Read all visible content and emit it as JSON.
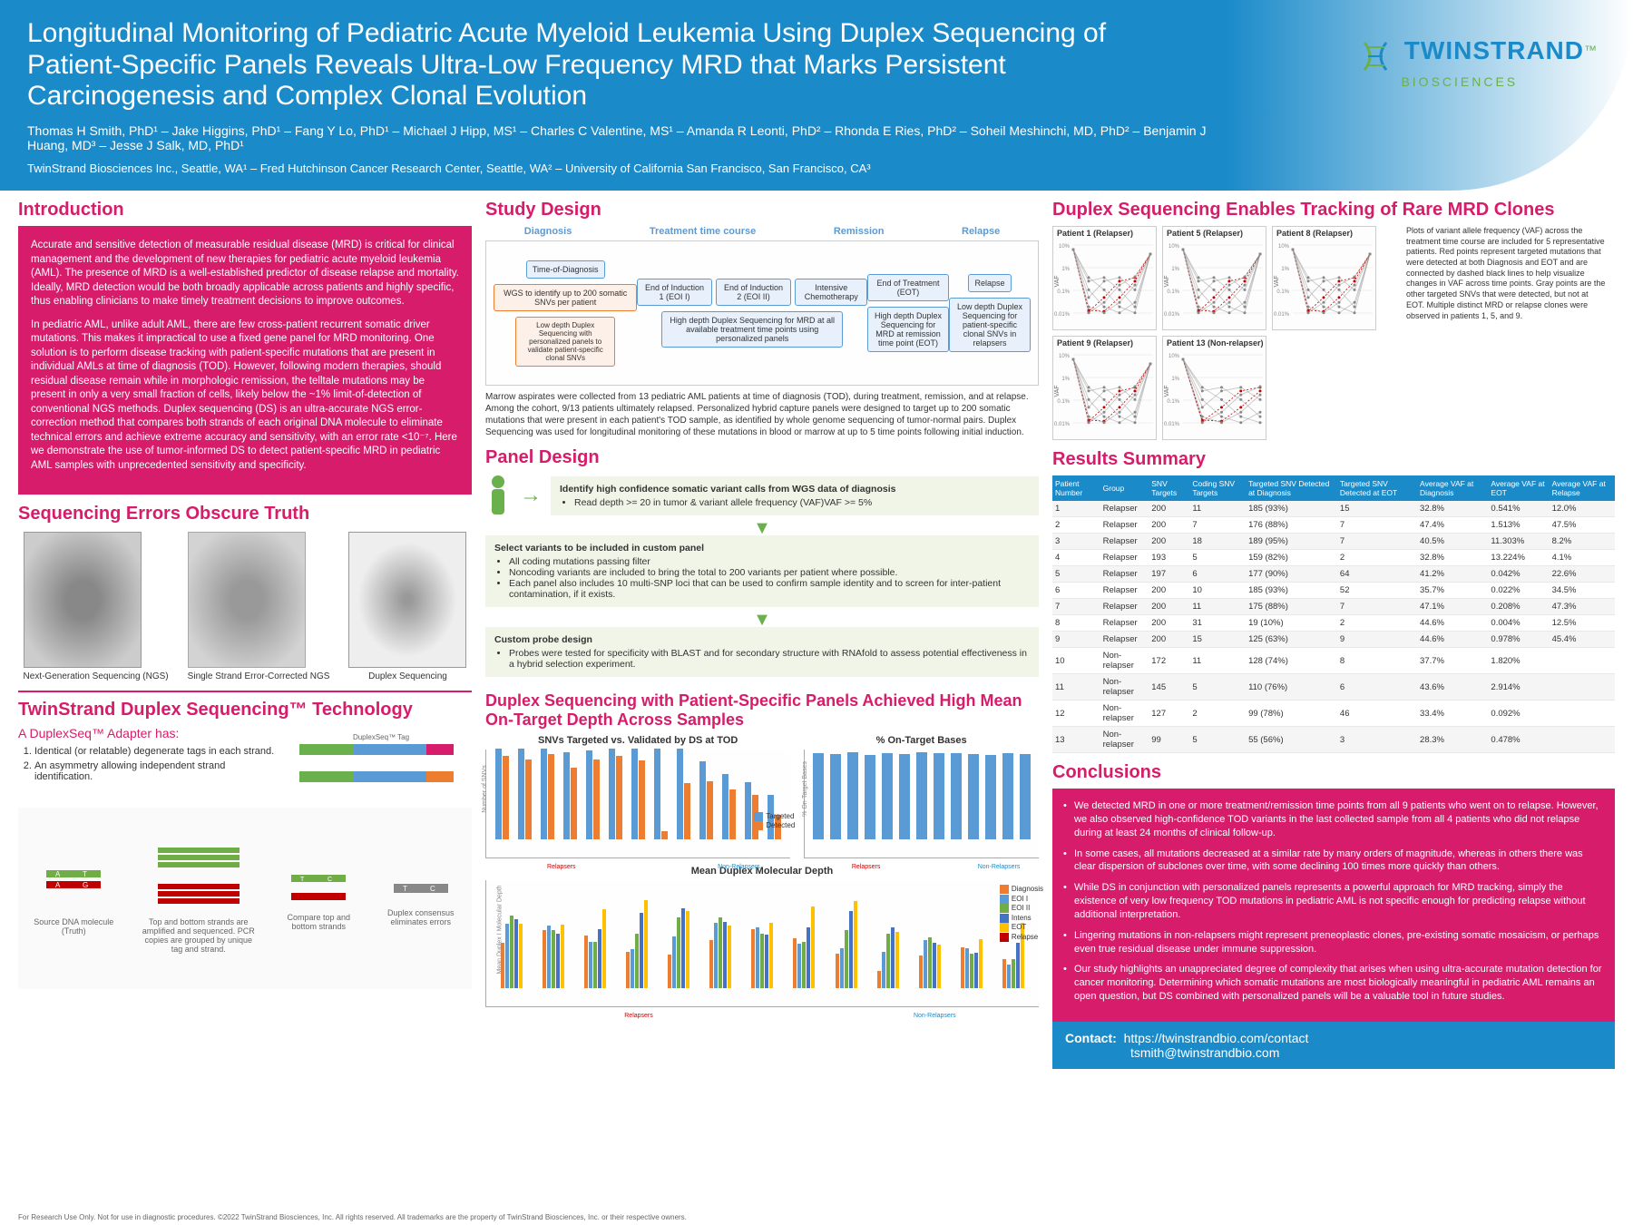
{
  "header": {
    "title": "Longitudinal Monitoring of Pediatric Acute Myeloid Leukemia Using Duplex Sequencing of Patient-Specific Panels Reveals Ultra-Low Frequency MRD that Marks Persistent Carcinogenesis and Complex Clonal Evolution",
    "authors": "Thomas H Smith, PhD¹ – Jake Higgins, PhD¹ – Fang Y Lo, PhD¹ – Michael J Hipp, MS¹ – Charles C Valentine, MS¹ – Amanda R Leonti, PhD² – Rhonda E Ries, PhD² – Soheil Meshinchi, MD, PhD² – Benjamin J Huang, MD³ – Jesse J Salk, MD, PhD¹",
    "affiliations": "TwinStrand Biosciences Inc., Seattle, WA¹ – Fred Hutchinson Cancer Research Center, Seattle, WA² – University of California San Francisco, San Francisco, CA³",
    "logo_main": "TWINSTRAND",
    "logo_sub": "BIOSCIENCES"
  },
  "intro": {
    "title": "Introduction",
    "p1": "Accurate and sensitive detection of measurable residual disease (MRD) is critical for clinical management and the development of new therapies for pediatric acute myeloid leukemia (AML). The presence of MRD is a well-established predictor of disease relapse and mortality. Ideally, MRD detection would be both broadly applicable across patients and highly specific, thus enabling clinicians to make timely treatment decisions to improve outcomes.",
    "p2": "In pediatric AML, unlike adult AML, there are few cross-patient recurrent somatic driver mutations. This makes it impractical to use a fixed gene panel for MRD monitoring. One solution is to perform disease tracking with patient-specific mutations that are present in individual AMLs at time of diagnosis (TOD). However, following modern therapies, should residual disease remain while in morphologic remission, the telltale mutations may be present in only a very small fraction of cells, likely below the ~1% limit-of-detection of conventional NGS methods. Duplex sequencing (DS) is an ultra-accurate NGS error-correction method that compares both strands of each original DNA molecule to eliminate technical errors and achieve extreme accuracy and sensitivity, with an error rate <10⁻⁷. Here we demonstrate the use of tumor-informed DS to detect patient-specific MRD in pediatric AML samples with unprecedented sensitivity and specificity."
  },
  "seq_err": {
    "title": "Sequencing Errors Obscure Truth",
    "labels": [
      "Next-Generation Sequencing (NGS)",
      "Single Strand Error-Corrected NGS",
      "Duplex Sequencing"
    ]
  },
  "tech": {
    "title": "TwinStrand Duplex Sequencing™ Technology",
    "adapter_heading": "A DuplexSeq™ Adapter has:",
    "adapter_items": [
      "Identical (or relatable) degenerate tags in each strand.",
      "An asymmetry allowing independent strand identification."
    ],
    "diagram_labels": [
      "Source DNA molecule (Truth)",
      "Top and bottom strands are amplified and sequenced. PCR copies are grouped by unique tag and strand.",
      "Compare top and bottom strands",
      "Duplex consensus eliminates errors"
    ]
  },
  "study": {
    "title": "Study Design",
    "phases": [
      "Diagnosis",
      "Treatment time course",
      "Remission",
      "Relapse"
    ],
    "boxes": [
      "Time-of-Diagnosis",
      "End of Induction 1 (EOI I)",
      "End of Induction 2 (EOI II)",
      "Intensive Chemotherapy",
      "End of Treatment (EOT)",
      "Relapse"
    ],
    "sub_boxes": [
      "WGS to identify up to 200 somatic SNVs per patient",
      "High depth Duplex Sequencing for MRD at all available treatment time points using personalized panels",
      "High depth Duplex Sequencing for MRD at remission time point (EOT)",
      "Low depth Duplex Sequencing for patient-specific clonal SNVs in relapsers"
    ],
    "validation_box": "Low depth Duplex Sequencing with personalized panels to validate patient-specific clonal SNVs",
    "caption": "Marrow aspirates were collected from 13 pediatric AML patients at time of diagnosis (TOD), during treatment, remission, and at relapse. Among the cohort, 9/13 patients ultimately relapsed. Personalized hybrid capture panels were designed to target up to 200 somatic mutations that were present in each patient's TOD sample, as identified by whole genome sequencing of tumor-normal pairs. Duplex Sequencing was used for longitudinal monitoring of these mutations in blood or marrow at up to 5 time points following initial induction."
  },
  "panel": {
    "title": "Panel Design",
    "step1": "Identify high confidence somatic variant calls from WGS data of diagnosis",
    "step1_sub": "Read depth >= 20 in tumor & variant allele frequency (VAF)VAF >= 5%",
    "step2": "Select variants to be included in custom panel",
    "step2_items": [
      "All coding mutations passing filter",
      "Noncoding variants are included to bring the total to 200 variants per patient where possible.",
      "Each panel also includes 10 multi-SNP loci that can be used to confirm sample identity and to screen for inter-patient contamination, if it exists."
    ],
    "step3": "Custom probe design",
    "step3_items": [
      "Probes were tested for specificity with BLAST and for secondary structure with RNAfold to assess potential effectiveness in a hybrid selection experiment."
    ]
  },
  "depth_section": {
    "title": "Duplex Sequencing with Patient-Specific Panels Achieved High Mean On-Target Depth Across Samples",
    "chart1_title": "SNVs Targeted vs. Validated by DS at TOD",
    "chart1_ylabel": "Number of SNVs",
    "chart1_ymax": 200,
    "chart1_legend": [
      "Targeted",
      "Detected"
    ],
    "chart1_colors": [
      "#5b9bd5",
      "#ed7d31"
    ],
    "chart1_targeted": [
      200,
      200,
      200,
      193,
      197,
      200,
      200,
      200,
      200,
      172,
      145,
      127,
      99
    ],
    "chart1_detected": [
      185,
      176,
      189,
      159,
      177,
      185,
      175,
      19,
      125,
      128,
      110,
      99,
      55
    ],
    "chart2_title": "% On-Target Bases",
    "chart2_ylabel": "% On-Target Bases",
    "chart2_ymax": 100,
    "chart2_color": "#5b9bd5",
    "chart2_values": [
      95,
      94,
      96,
      93,
      95,
      94,
      96,
      95,
      95,
      94,
      93,
      95,
      94
    ],
    "chart3_title": "Mean Duplex Molecular Depth",
    "chart3_ylabel": "Mean Duplex I Molecular Depth",
    "chart3_ymax": 40000,
    "chart3_legend": [
      "Diagnosis",
      "EOI I",
      "EOI II",
      "Intens",
      "EOT",
      "Relapse"
    ],
    "chart3_colors": [
      "#ed7d31",
      "#5b9bd5",
      "#70ad47",
      "#4472c4",
      "#ffc000",
      "#c00000"
    ],
    "group_labels": {
      "relapsers": "Relapsers",
      "nonrelapsers": "Non-Relapsers"
    },
    "patient_ids": [
      1,
      2,
      3,
      4,
      5,
      6,
      7,
      8,
      9,
      10,
      11,
      12,
      13
    ]
  },
  "vaf": {
    "title": "Duplex Sequencing Enables Tracking of Rare MRD Clones",
    "plots": [
      "Patient 1 (Relapser)",
      "Patient 5 (Relapser)",
      "Patient 8 (Relapser)",
      "Patient 9 (Relapser)",
      "Patient 13 (Non-relapser)"
    ],
    "ylabel": "VAF",
    "xticks": [
      "Diagnosis",
      "EOI 1",
      "EOI 2",
      "Intens",
      "EOT",
      "Relapse"
    ],
    "yticks": [
      "10%",
      "1%",
      "0.1%",
      "0.01%"
    ],
    "side_text": "Plots of variant allele frequency (VAF) across the treatment time course are included for 5 representative patients. Red points represent targeted mutations that were detected at both Diagnosis and EOT and are connected by dashed black lines to help visualize changes in VAF across time points. Gray points are the other targeted SNVs that were detected, but not at EOT. Multiple distinct MRD or relapse clones were observed in patients 1, 5, and 9.",
    "point_colors": {
      "tracked": "#c00000",
      "other": "#888888"
    }
  },
  "results": {
    "title": "Results Summary",
    "columns": [
      "Patient Number",
      "Group",
      "SNV Targets",
      "Coding SNV Targets",
      "Targeted SNV Detected at Diagnosis",
      "Targeted SNV Detected at EOT",
      "Average VAF at Diagnosis",
      "Average VAF at EOT",
      "Average VAF at Relapse"
    ],
    "rows": [
      [
        "1",
        "Relapser",
        "200",
        "11",
        "185 (93%)",
        "15",
        "32.8%",
        "0.541%",
        "12.0%"
      ],
      [
        "2",
        "Relapser",
        "200",
        "7",
        "176 (88%)",
        "7",
        "47.4%",
        "1.513%",
        "47.5%"
      ],
      [
        "3",
        "Relapser",
        "200",
        "18",
        "189 (95%)",
        "7",
        "40.5%",
        "11.303%",
        "8.2%"
      ],
      [
        "4",
        "Relapser",
        "193",
        "5",
        "159 (82%)",
        "2",
        "32.8%",
        "13.224%",
        "4.1%"
      ],
      [
        "5",
        "Relapser",
        "197",
        "6",
        "177 (90%)",
        "64",
        "41.2%",
        "0.042%",
        "22.6%"
      ],
      [
        "6",
        "Relapser",
        "200",
        "10",
        "185 (93%)",
        "52",
        "35.7%",
        "0.022%",
        "34.5%"
      ],
      [
        "7",
        "Relapser",
        "200",
        "11",
        "175 (88%)",
        "7",
        "47.1%",
        "0.208%",
        "47.3%"
      ],
      [
        "8",
        "Relapser",
        "200",
        "31",
        "19 (10%)",
        "2",
        "44.6%",
        "0.004%",
        "12.5%"
      ],
      [
        "9",
        "Relapser",
        "200",
        "15",
        "125 (63%)",
        "9",
        "44.6%",
        "0.978%",
        "45.4%"
      ],
      [
        "10",
        "Non-relapser",
        "172",
        "11",
        "128 (74%)",
        "8",
        "37.7%",
        "1.820%",
        ""
      ],
      [
        "11",
        "Non-relapser",
        "145",
        "5",
        "110 (76%)",
        "6",
        "43.6%",
        "2.914%",
        ""
      ],
      [
        "12",
        "Non-relapser",
        "127",
        "2",
        "99 (78%)",
        "46",
        "33.4%",
        "0.092%",
        ""
      ],
      [
        "13",
        "Non-relapser",
        "99",
        "5",
        "55 (56%)",
        "3",
        "28.3%",
        "0.478%",
        ""
      ]
    ]
  },
  "conclusions": {
    "title": "Conclusions",
    "items": [
      "We detected MRD in one or more treatment/remission time points from all 9 patients who went on to relapse. However, we also observed high-confidence TOD variants in the last collected sample from all 4 patients who did not relapse during at least 24 months of clinical follow-up.",
      "In some cases, all mutations decreased at a similar rate by many orders of magnitude, whereas in others there was clear dispersion of subclones over time, with some declining 100 times more quickly than others.",
      "While DS in conjunction with personalized panels represents a powerful approach for MRD tracking, simply the existence of very low frequency TOD mutations in pediatric AML is not specific enough for predicting relapse without additional interpretation.",
      "Lingering mutations in non-relapsers might represent preneoplastic clones, pre-existing somatic mosaicism, or perhaps even true residual disease under immune suppression.",
      "Our study highlights an unappreciated degree of complexity that arises when using ultra-accurate mutation detection for cancer monitoring. Determining which somatic mutations are most biologically meaningful in pediatric AML remains an open question, but DS combined with personalized panels will be a valuable tool in future studies."
    ]
  },
  "contact": {
    "label": "Contact:",
    "url": "https://twinstrandbio.com/contact",
    "email": "tsmith@twinstrandbio.com"
  },
  "footer": "For Research Use Only. Not for use in diagnostic procedures. ©2022 TwinStrand Biosciences, Inc. All rights reserved. All trademarks are the property of TwinStrand Biosciences, Inc. or their respective owners."
}
